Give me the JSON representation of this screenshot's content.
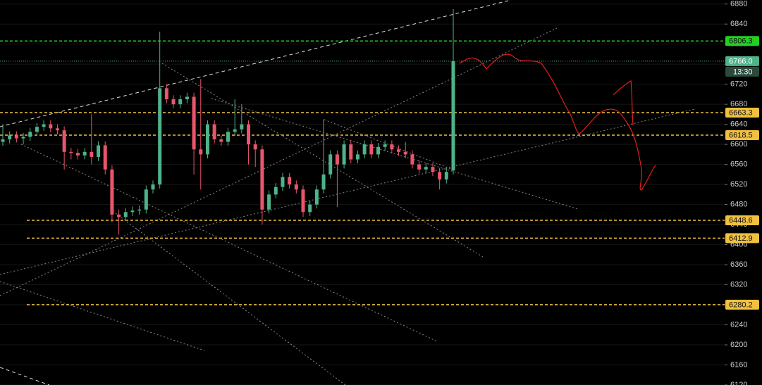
{
  "chart_data": {
    "type": "candlestick",
    "up_color": "#4fb38a",
    "down_color": "#e8566b",
    "open": [
      6605,
      6610,
      6618,
      6612,
      6615,
      6625,
      6635,
      6640,
      6632,
      6628,
      6585,
      6583,
      6578,
      6585,
      6575,
      6598,
      6550,
      6460,
      6455,
      6465,
      6468,
      6470,
      6510,
      6520,
      6712,
      6690,
      6680,
      6690,
      6695,
      6590,
      6580,
      6640,
      6610,
      6605,
      6625,
      6630,
      6640,
      6600,
      6590,
      6470,
      6500,
      6515,
      6535,
      6520,
      6510,
      6465,
      6480,
      6510,
      6540,
      6580,
      6560,
      6600,
      6570,
      6580,
      6600,
      6580,
      6595,
      6600,
      6590,
      6585,
      6580,
      6560,
      6550,
      6555,
      6545,
      6530,
      6548
    ],
    "high": [
      6640,
      6626,
      6626,
      6623,
      6633,
      6643,
      6648,
      6648,
      6640,
      6636,
      6593,
      6591,
      6593,
      6660,
      6606,
      6606,
      6558,
      6470,
      6473,
      6476,
      6478,
      6518,
      6528,
      6825,
      6720,
      6698,
      6698,
      6703,
      6703,
      6730,
      6648,
      6648,
      6618,
      6633,
      6690,
      6680,
      6648,
      6608,
      6598,
      6508,
      6523,
      6543,
      6543,
      6528,
      6518,
      6488,
      6518,
      6650,
      6588,
      6588,
      6608,
      6608,
      6588,
      6608,
      6608,
      6603,
      6608,
      6608,
      6598,
      6605,
      6588,
      6568,
      6563,
      6563,
      6553,
      6553,
      6870
    ],
    "low": [
      6597,
      6602,
      6604,
      6600,
      6607,
      6617,
      6627,
      6624,
      6620,
      6550,
      6570,
      6570,
      6570,
      6560,
      6567,
      6540,
      6445,
      6420,
      6447,
      6457,
      6460,
      6462,
      6502,
      6512,
      6682,
      6672,
      6672,
      6682,
      6540,
      6510,
      6572,
      6602,
      6597,
      6597,
      6617,
      6622,
      6560,
      6555,
      6440,
      6462,
      6492,
      6507,
      6512,
      6502,
      6455,
      6457,
      6472,
      6502,
      6532,
      6475,
      6552,
      6562,
      6562,
      6572,
      6572,
      6572,
      6587,
      6582,
      6577,
      6572,
      6552,
      6542,
      6542,
      6537,
      6510,
      6522,
      6540
    ],
    "close": [
      6610,
      6618,
      6612,
      6615,
      6625,
      6635,
      6640,
      6632,
      6628,
      6585,
      6583,
      6578,
      6585,
      6575,
      6598,
      6550,
      6460,
      6455,
      6465,
      6468,
      6470,
      6510,
      6520,
      6712,
      6690,
      6680,
      6690,
      6695,
      6590,
      6580,
      6640,
      6610,
      6605,
      6625,
      6630,
      6640,
      6600,
      6590,
      6470,
      6500,
      6515,
      6535,
      6520,
      6510,
      6465,
      6480,
      6510,
      6540,
      6580,
      6560,
      6600,
      6570,
      6580,
      6600,
      6580,
      6595,
      6600,
      6590,
      6585,
      6580,
      6560,
      6550,
      6555,
      6545,
      6530,
      6545,
      6766
    ],
    "ylim": [
      6120,
      6888
    ],
    "yticks": [
      6120,
      6160,
      6200,
      6240,
      6280,
      6320,
      6360,
      6400,
      6440,
      6480,
      6520,
      6560,
      6600,
      6640,
      6680,
      6720,
      6760,
      6800,
      6840,
      6880
    ],
    "grid": true,
    "levels": [
      {
        "value": 6806.3,
        "color": "#22d022",
        "style": "dashed"
      },
      {
        "value": 6766,
        "label": "6766.0",
        "color": "#4fb38a",
        "style": "dotted"
      },
      {
        "value": 6663.3,
        "color": "#f0c040",
        "style": "dashed"
      },
      {
        "value": 6618.5,
        "color": "#f0c040",
        "style": "dashed"
      },
      {
        "value": 6448.6,
        "color": "#f0c040",
        "style": "dashed"
      },
      {
        "value": 6412.9,
        "color": "#f0c040",
        "style": "dashed"
      },
      {
        "value": 6280.2,
        "color": "#f0c040",
        "style": "dashed"
      }
    ],
    "countdown": "13:30"
  }
}
